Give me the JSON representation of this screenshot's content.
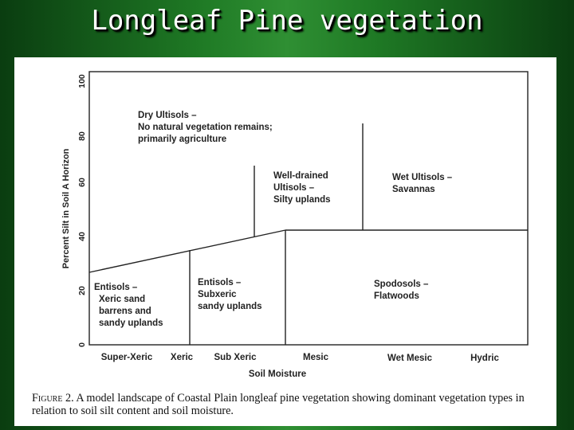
{
  "slide": {
    "title": "Longleaf Pine vegetation"
  },
  "figure": {
    "caption_label": "Figure 2.",
    "caption_text": "A model landscape of Coastal Plain longleaf pine vegetation showing dominant vegetation types in relation to soil silt content and soil moisture.",
    "y_axis": {
      "label": "Percent Silt in Soil A Horizon",
      "ticks": [
        "0",
        "20",
        "40",
        "60",
        "80",
        "100"
      ]
    },
    "x_axis": {
      "label": "Soil Moisture",
      "categories": [
        "Super-Xeric",
        "Xeric",
        "Sub Xeric",
        "Mesic",
        "Wet Mesic",
        "Hydric"
      ]
    },
    "regions": [
      {
        "name": "region-dry-ultisols",
        "lines": [
          "Dry Ultisols –",
          "No natural vegetation remains;",
          "primarily agriculture"
        ]
      },
      {
        "name": "region-well-drained-ultisols",
        "lines": [
          "Well-drained",
          "Ultisols –",
          "Silty uplands"
        ]
      },
      {
        "name": "region-wet-ultisols",
        "lines": [
          "Wet Ultisols –",
          "Savannas"
        ]
      },
      {
        "name": "region-entisols-xeric",
        "lines": [
          "Entisols –",
          "Xeric sand",
          "barrens and",
          "sandy uplands"
        ]
      },
      {
        "name": "region-entisols-subxeric",
        "lines": [
          "Entisols –",
          "Subxeric",
          "sandy uplands"
        ]
      },
      {
        "name": "region-spodosols",
        "lines": [
          "Spodosols –",
          "Flatwoods"
        ]
      }
    ]
  }
}
